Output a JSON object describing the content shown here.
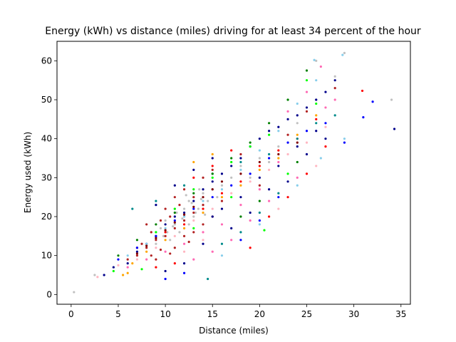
{
  "chart_data": {
    "type": "scatter",
    "title": "Energy (kWh) vs distance (miles) driving for at least 34 percent of the hour",
    "xlabel": "Distance (miles)",
    "ylabel": "Energy used (kWh)",
    "xlim": [
      -1.5,
      36
    ],
    "ylim": [
      -2.5,
      65
    ],
    "xticks": [
      0,
      5,
      10,
      15,
      20,
      25,
      30,
      35
    ],
    "yticks": [
      0,
      10,
      20,
      30,
      40,
      50,
      60
    ],
    "grid": false,
    "legend": "none",
    "colors": [
      "#c0c0c0",
      "#b22222",
      "#00008b",
      "#ff0000",
      "#ff69b4",
      "#87ceeb",
      "#008b8b",
      "#00ff00",
      "#ffa500",
      "#0000ff",
      "#008000",
      "#ffb6c1",
      "#800000"
    ],
    "series": [
      {
        "color": "#c0c0c0",
        "points": [
          [
            0.3,
            0.6
          ],
          [
            2.5,
            5
          ],
          [
            10,
            19
          ],
          [
            11,
            18
          ],
          [
            12,
            22
          ],
          [
            12.5,
            24
          ],
          [
            13,
            25
          ],
          [
            13.5,
            22
          ],
          [
            14,
            23
          ],
          [
            11.5,
            16
          ],
          [
            10.5,
            14
          ],
          [
            12,
            20
          ],
          [
            13,
            20
          ],
          [
            14,
            26
          ],
          [
            15,
            27
          ],
          [
            16,
            28
          ],
          [
            17,
            30
          ],
          [
            9,
            13
          ],
          [
            9.5,
            17
          ],
          [
            11,
            22
          ],
          [
            12.5,
            18
          ],
          [
            13.2,
            21
          ],
          [
            14.5,
            24
          ],
          [
            15.5,
            25
          ],
          [
            18,
            33
          ],
          [
            20,
            35
          ],
          [
            22,
            38
          ],
          [
            24,
            44
          ],
          [
            26,
            50
          ],
          [
            26,
            60
          ],
          [
            34,
            50
          ],
          [
            29,
            62
          ],
          [
            28,
            56
          ],
          [
            21,
            34
          ],
          [
            19,
            30
          ],
          [
            12.8,
            23.5
          ],
          [
            11.8,
            19.5
          ],
          [
            10.8,
            17.5
          ],
          [
            13.8,
            24.5
          ],
          [
            12.2,
            25.5
          ],
          [
            11.2,
            21
          ],
          [
            14.2,
            20.5
          ],
          [
            10.2,
            16
          ],
          [
            9.8,
            15
          ],
          [
            13.6,
            27
          ]
        ]
      },
      {
        "color": "#b22222",
        "points": [
          [
            8,
            12
          ],
          [
            9,
            14
          ],
          [
            10,
            15
          ],
          [
            11,
            17
          ],
          [
            12,
            19
          ],
          [
            13,
            21
          ],
          [
            14,
            23
          ],
          [
            7,
            10
          ],
          [
            8.5,
            16
          ],
          [
            10.5,
            20
          ],
          [
            12,
            15
          ],
          [
            14,
            18
          ],
          [
            15,
            20
          ],
          [
            16,
            24
          ],
          [
            9,
            9
          ],
          [
            11,
            12
          ],
          [
            13,
            16
          ],
          [
            7.5,
            13
          ],
          [
            10,
            22
          ],
          [
            12,
            27
          ],
          [
            14,
            30
          ],
          [
            6,
            9
          ],
          [
            8,
            18
          ],
          [
            11,
            25
          ],
          [
            15,
            32
          ],
          [
            18,
            36
          ],
          [
            23,
            41
          ],
          [
            25,
            47
          ],
          [
            28,
            53
          ],
          [
            20,
            28
          ],
          [
            10.5,
            10.5
          ],
          [
            9.5,
            11.5
          ],
          [
            12.5,
            13.5
          ],
          [
            8.5,
            10
          ],
          [
            13,
            25
          ],
          [
            11.5,
            23
          ],
          [
            7,
            12
          ],
          [
            9.5,
            19
          ]
        ]
      },
      {
        "color": "#00008b",
        "points": [
          [
            3.5,
            5
          ],
          [
            4.5,
            7
          ],
          [
            6,
            8
          ],
          [
            7,
            11
          ],
          [
            8,
            13
          ],
          [
            9,
            15
          ],
          [
            10,
            18
          ],
          [
            11,
            20
          ],
          [
            12,
            21
          ],
          [
            13,
            24
          ],
          [
            14,
            27
          ],
          [
            15,
            29
          ],
          [
            16,
            31
          ],
          [
            17,
            33
          ],
          [
            18,
            35
          ],
          [
            19,
            38
          ],
          [
            20,
            40
          ],
          [
            21,
            42
          ],
          [
            22,
            43
          ],
          [
            23,
            45
          ],
          [
            24,
            46
          ],
          [
            25,
            48
          ],
          [
            26,
            50
          ],
          [
            27,
            52
          ],
          [
            28,
            55
          ],
          [
            34.3,
            42.5
          ],
          [
            15,
            20
          ],
          [
            16,
            22
          ],
          [
            18,
            25
          ],
          [
            20,
            30
          ],
          [
            22,
            33
          ],
          [
            24,
            38
          ],
          [
            26,
            42
          ],
          [
            14,
            13
          ],
          [
            12,
            8
          ],
          [
            10,
            6
          ],
          [
            17,
            17
          ],
          [
            19,
            21
          ],
          [
            21,
            27
          ],
          [
            23,
            29
          ],
          [
            25,
            36
          ],
          [
            27,
            40
          ],
          [
            13,
            32
          ],
          [
            15,
            35
          ],
          [
            11,
            28
          ],
          [
            9,
            23
          ]
        ]
      },
      {
        "color": "#ff0000",
        "points": [
          [
            30.9,
            52.3
          ],
          [
            26,
            45
          ],
          [
            24,
            40
          ],
          [
            22,
            37
          ],
          [
            20,
            33
          ],
          [
            18,
            29
          ],
          [
            16,
            26
          ],
          [
            14,
            22
          ],
          [
            12,
            18
          ],
          [
            10,
            16
          ],
          [
            19,
            12
          ],
          [
            21,
            20
          ],
          [
            23,
            25
          ],
          [
            25,
            31
          ],
          [
            27,
            38
          ],
          [
            13,
            30
          ],
          [
            15,
            33
          ],
          [
            17,
            37
          ],
          [
            11,
            8
          ],
          [
            9,
            7
          ]
        ]
      },
      {
        "color": "#ff69b4",
        "points": [
          [
            26.5,
            58.5
          ],
          [
            25,
            52
          ],
          [
            27,
            48
          ],
          [
            22,
            34
          ],
          [
            20,
            27
          ],
          [
            18,
            23
          ],
          [
            16,
            18
          ],
          [
            14,
            16
          ],
          [
            12,
            13
          ],
          [
            10,
            11
          ],
          [
            8,
            9
          ],
          [
            6,
            7
          ],
          [
            24,
            30
          ],
          [
            21,
            24
          ],
          [
            19,
            19
          ],
          [
            17,
            14
          ],
          [
            15,
            11
          ],
          [
            13,
            9
          ],
          [
            23,
            47
          ],
          [
            28,
            50
          ]
        ]
      },
      {
        "color": "#87ceeb",
        "points": [
          [
            28.8,
            61.5
          ],
          [
            25.8,
            60.2
          ],
          [
            26,
            55
          ],
          [
            24,
            49
          ],
          [
            22,
            42
          ],
          [
            20,
            37
          ],
          [
            18,
            32
          ],
          [
            16,
            27
          ],
          [
            14,
            24
          ],
          [
            12,
            20
          ],
          [
            10,
            17
          ],
          [
            8,
            13
          ],
          [
            6,
            10
          ],
          [
            16,
            10
          ],
          [
            20,
            18
          ],
          [
            24,
            28
          ],
          [
            26.5,
            35
          ],
          [
            29,
            40
          ]
        ]
      },
      {
        "color": "#008b8b",
        "points": [
          [
            14.5,
            4
          ],
          [
            6.5,
            22
          ],
          [
            9,
            24
          ],
          [
            12,
            28
          ],
          [
            15,
            31
          ],
          [
            18,
            34
          ],
          [
            21,
            36
          ],
          [
            24,
            40
          ],
          [
            26,
            44
          ],
          [
            28,
            46
          ],
          [
            16,
            13
          ],
          [
            18,
            16
          ],
          [
            20,
            21
          ],
          [
            22,
            26
          ]
        ]
      },
      {
        "color": "#00ff00",
        "points": [
          [
            7.5,
            6.5
          ],
          [
            4.5,
            6
          ],
          [
            21,
            41
          ],
          [
            19,
            38
          ],
          [
            17,
            34
          ],
          [
            15,
            30
          ],
          [
            13,
            27
          ],
          [
            11,
            22
          ],
          [
            9,
            16
          ],
          [
            20.5,
            16.5
          ],
          [
            23,
            31
          ],
          [
            25,
            55
          ],
          [
            26,
            49
          ],
          [
            17,
            25
          ],
          [
            13,
            17
          ]
        ]
      },
      {
        "color": "#ffa500",
        "points": [
          [
            5.5,
            5
          ],
          [
            6,
            5.5
          ],
          [
            6.5,
            8
          ],
          [
            8,
            11
          ],
          [
            10,
            14
          ],
          [
            12,
            17
          ],
          [
            14,
            21
          ],
          [
            16,
            25
          ],
          [
            18,
            28
          ],
          [
            20,
            32
          ],
          [
            22,
            35
          ],
          [
            24,
            41
          ],
          [
            26,
            46
          ],
          [
            15,
            36
          ],
          [
            13,
            34
          ]
        ]
      },
      {
        "color": "#0000ff",
        "points": [
          [
            32,
            49.5
          ],
          [
            31,
            45.5
          ],
          [
            29,
            39
          ],
          [
            27,
            44
          ],
          [
            25,
            42
          ],
          [
            23,
            39
          ],
          [
            21,
            35
          ],
          [
            19,
            31
          ],
          [
            17,
            28
          ],
          [
            15,
            25
          ],
          [
            13,
            22
          ],
          [
            11,
            19
          ],
          [
            9,
            15
          ],
          [
            7,
            12
          ],
          [
            5,
            9
          ],
          [
            10,
            4
          ],
          [
            12,
            5.5
          ],
          [
            18,
            14
          ],
          [
            20,
            19
          ],
          [
            22,
            25
          ]
        ]
      },
      {
        "color": "#008000",
        "points": [
          [
            25,
            57.5
          ],
          [
            23,
            50
          ],
          [
            21,
            44
          ],
          [
            19,
            39
          ],
          [
            17,
            35
          ],
          [
            15,
            31
          ],
          [
            13,
            26
          ],
          [
            11,
            21
          ],
          [
            9,
            18
          ],
          [
            7,
            14
          ],
          [
            5,
            10
          ],
          [
            20,
            24
          ],
          [
            24,
            34
          ],
          [
            18,
            20
          ]
        ]
      },
      {
        "color": "#ffb6c1",
        "points": [
          [
            2.8,
            4.5
          ],
          [
            5,
            7.5
          ],
          [
            7,
            9
          ],
          [
            9,
            12
          ],
          [
            11,
            15
          ],
          [
            13,
            19
          ],
          [
            15,
            22
          ],
          [
            17,
            26
          ],
          [
            19,
            29
          ],
          [
            21,
            32
          ],
          [
            23,
            36
          ],
          [
            25,
            39
          ],
          [
            27,
            43
          ],
          [
            12,
            11
          ],
          [
            14,
            14
          ],
          [
            22,
            22
          ],
          [
            26,
            33
          ]
        ]
      },
      {
        "color": "#800000",
        "points": [
          [
            7,
            10.5
          ],
          [
            8,
            12.5
          ],
          [
            9,
            14.5
          ],
          [
            10,
            16.5
          ],
          [
            11,
            18.5
          ],
          [
            12,
            20.5
          ],
          [
            13,
            22.5
          ],
          [
            14,
            25
          ],
          [
            15,
            27
          ],
          [
            16,
            29
          ],
          [
            18,
            31
          ],
          [
            20,
            34
          ],
          [
            22,
            36
          ],
          [
            24,
            39
          ]
        ]
      }
    ]
  }
}
